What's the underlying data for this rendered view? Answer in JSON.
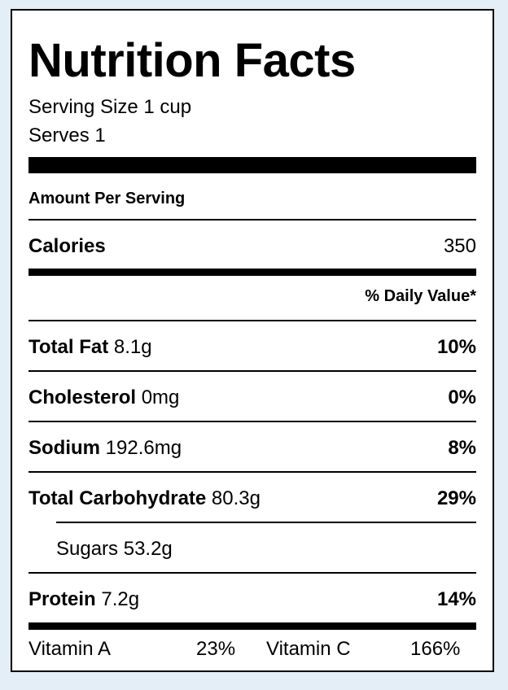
{
  "title": "Nutrition Facts",
  "serving_size": "Serving Size 1 cup",
  "serves": "Serves 1",
  "amount_per_serving": "Amount Per Serving",
  "calories": {
    "label": "Calories",
    "value": "350"
  },
  "daily_value_header": "% Daily Value*",
  "nutrients": {
    "total_fat": {
      "label": "Total Fat",
      "amount": "8.1g",
      "dv": "10%"
    },
    "cholesterol": {
      "label": "Cholesterol",
      "amount": "0mg",
      "dv": "0%"
    },
    "sodium": {
      "label": "Sodium",
      "amount": "192.6mg",
      "dv": "8%"
    },
    "total_carbohydrate": {
      "label": "Total Carbohydrate",
      "amount": "80.3g",
      "dv": "29%"
    },
    "sugars": {
      "label": "Sugars",
      "amount": "53.2g"
    },
    "protein": {
      "label": "Protein",
      "amount": "7.2g",
      "dv": "14%"
    }
  },
  "vitamins": {
    "vitamin_a": {
      "label": "Vitamin A",
      "value": "23%"
    },
    "vitamin_c": {
      "label": "Vitamin C",
      "value": "166%"
    }
  }
}
